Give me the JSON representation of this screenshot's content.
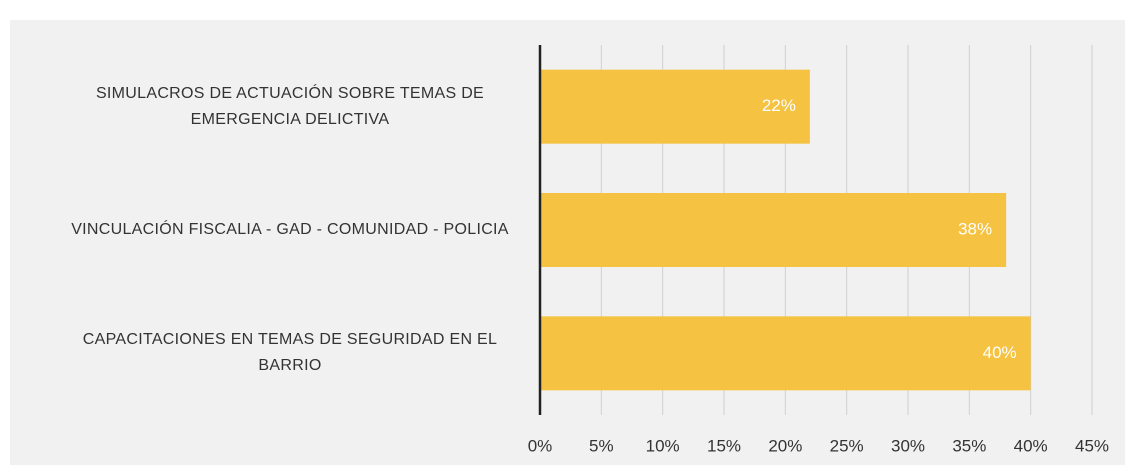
{
  "chart_data": {
    "type": "bar",
    "orientation": "horizontal",
    "categories": [
      "SIMULACROS DE ACTUACIÓN SOBRE TEMAS DE EMERGENCIA DELICTIVA",
      "VINCULACIÓN FISCALIA - GAD - COMUNIDAD - POLICIA",
      "CAPACITACIONES EN TEMAS DE SEGURIDAD EN EL BARRIO"
    ],
    "values": [
      22,
      38,
      40
    ],
    "value_labels": [
      "22%",
      "38%",
      "40%"
    ],
    "color": "#f5c242",
    "xlim": [
      0,
      45
    ],
    "xticks": [
      {
        "value": 0,
        "label": "0%"
      },
      {
        "value": 5,
        "label": "5%"
      },
      {
        "value": 10,
        "label": "10%"
      },
      {
        "value": 15,
        "label": "15%"
      },
      {
        "value": 20,
        "label": "20%"
      },
      {
        "value": 25,
        "label": "25%"
      },
      {
        "value": 30,
        "label": "30%"
      },
      {
        "value": 35,
        "label": "35%"
      },
      {
        "value": 40,
        "label": "40%"
      },
      {
        "value": 45,
        "label": "45%"
      }
    ],
    "grid": true
  }
}
